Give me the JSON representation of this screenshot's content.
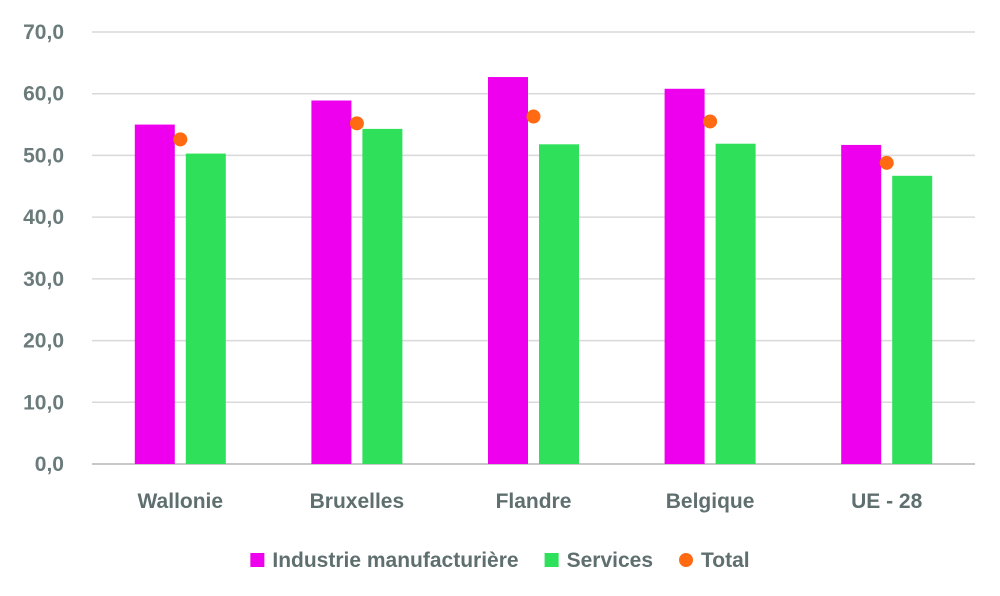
{
  "chart_data": {
    "type": "bar",
    "title": "",
    "xlabel": "",
    "ylabel": "",
    "categories": [
      "Wallonie",
      "Bruxelles",
      "Flandre",
      "Belgique",
      "UE - 28"
    ],
    "series": [
      {
        "name": "Industrie manufacturière",
        "type": "bar",
        "color": "#ee00ee",
        "values": [
          55.0,
          58.9,
          62.7,
          60.8,
          51.7
        ]
      },
      {
        "name": "Services",
        "type": "bar",
        "color": "#2ee05a",
        "values": [
          50.3,
          54.3,
          51.8,
          51.9,
          46.7
        ]
      },
      {
        "name": "Total",
        "type": "scatter",
        "color": "#ff6a13",
        "values": [
          52.6,
          55.2,
          56.3,
          55.5,
          48.8
        ]
      }
    ],
    "ylim": [
      0,
      70
    ],
    "ytick_labels": [
      "0,0",
      "10,0",
      "20,0",
      "30,0",
      "40,0",
      "50,0",
      "60,0",
      "70,0"
    ],
    "grid": true,
    "legend_position": "bottom"
  }
}
